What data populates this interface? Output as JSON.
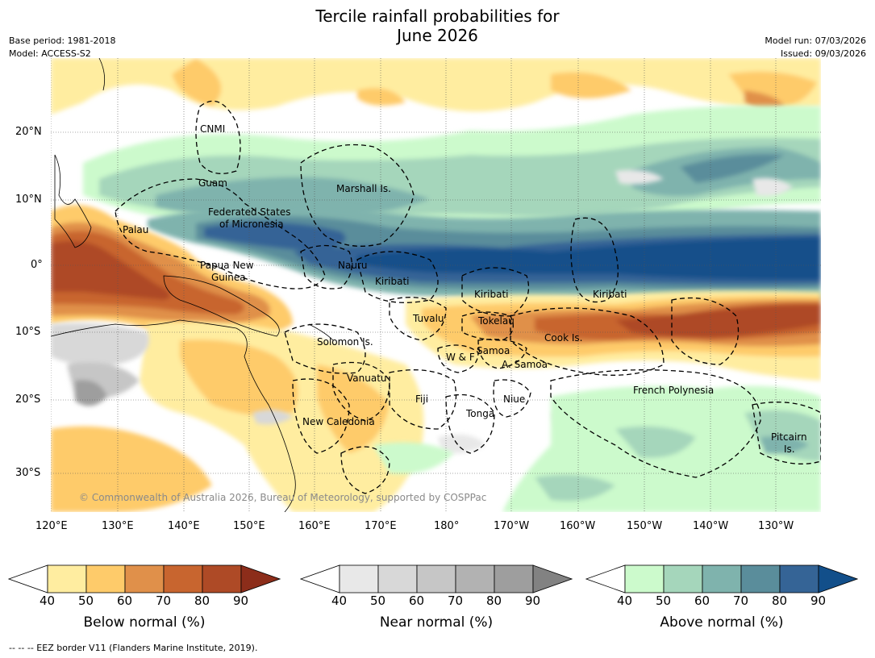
{
  "title_line1": "Tercile rainfall probabilities for",
  "title_line2": "June 2026",
  "base_period": "Base period: 1981-2018",
  "model": "Model: ACCESS-S2",
  "model_run": "Model run: 07/03/2026",
  "issued": "Issued: 09/03/2026",
  "lon_labels": [
    "120°E",
    "130°E",
    "140°E",
    "150°E",
    "160°E",
    "170°E",
    "180°",
    "170°W",
    "160°W",
    "150°W",
    "140°W",
    "130°W"
  ],
  "lat_labels": [
    "20°N",
    "10°N",
    "0°",
    "10°S",
    "20°S",
    "30°S"
  ],
  "regions": {
    "cnmi": "CNMI",
    "guam": "Guam",
    "marshall": "Marshall Is.",
    "fsm1": "Federated States",
    "fsm2": "of Micronesia",
    "palau": "Palau",
    "png1": "Papua New",
    "png2": "Guinea",
    "nauru": "Nauru",
    "kiribati_w": "Kiribati",
    "kiribati_c": "Kiribati",
    "kiribati_e": "Kiribati",
    "tuvalu": "Tuvalu",
    "tokelau": "Tokelau",
    "solomon": "Solomon Is.",
    "cook": "Cook Is.",
    "samoa": "Samoa",
    "wf": "W & F",
    "asamoa": "A. Samoa",
    "vanuatu": "Vanuatu",
    "fiji": "Fiji",
    "niue": "Niue",
    "frenchpoly": "French Polynesia",
    "tonga": "Tonga",
    "newcal": "New Caledonia",
    "pitcairn1": "Pitcairn",
    "pitcairn2": "Is."
  },
  "copyright": "© Commonwealth of Australia 2026, Bureau of Meteorology, supported by COSPPac",
  "colorbars": [
    {
      "label": "Below normal (%)",
      "ticks": [
        "40",
        "50",
        "60",
        "70",
        "80",
        "90"
      ],
      "colors": [
        "#ffeda0",
        "#fecb6a",
        "#e0904a",
        "#c8652f",
        "#ae4a26",
        "#8c2d1a"
      ]
    },
    {
      "label": "Near normal (%)",
      "ticks": [
        "40",
        "50",
        "60",
        "70",
        "80",
        "90"
      ],
      "colors": [
        "#e8e8e8",
        "#d8d8d8",
        "#c6c6c6",
        "#b2b2b2",
        "#9e9e9e",
        "#828282"
      ]
    },
    {
      "label": "Above normal (%)",
      "ticks": [
        "40",
        "50",
        "60",
        "70",
        "80",
        "90"
      ],
      "colors": [
        "#ccfacc",
        "#a5d6bb",
        "#7fb3ad",
        "#5a8d9b",
        "#356496",
        "#124f8a"
      ]
    }
  ],
  "footnote": "--  --  -- EEZ border V11 (Flanders Marine Institute, 2019).",
  "colors": {
    "below": "#ae4a26",
    "above": "#124f8a",
    "near": "#c6c6c6"
  }
}
